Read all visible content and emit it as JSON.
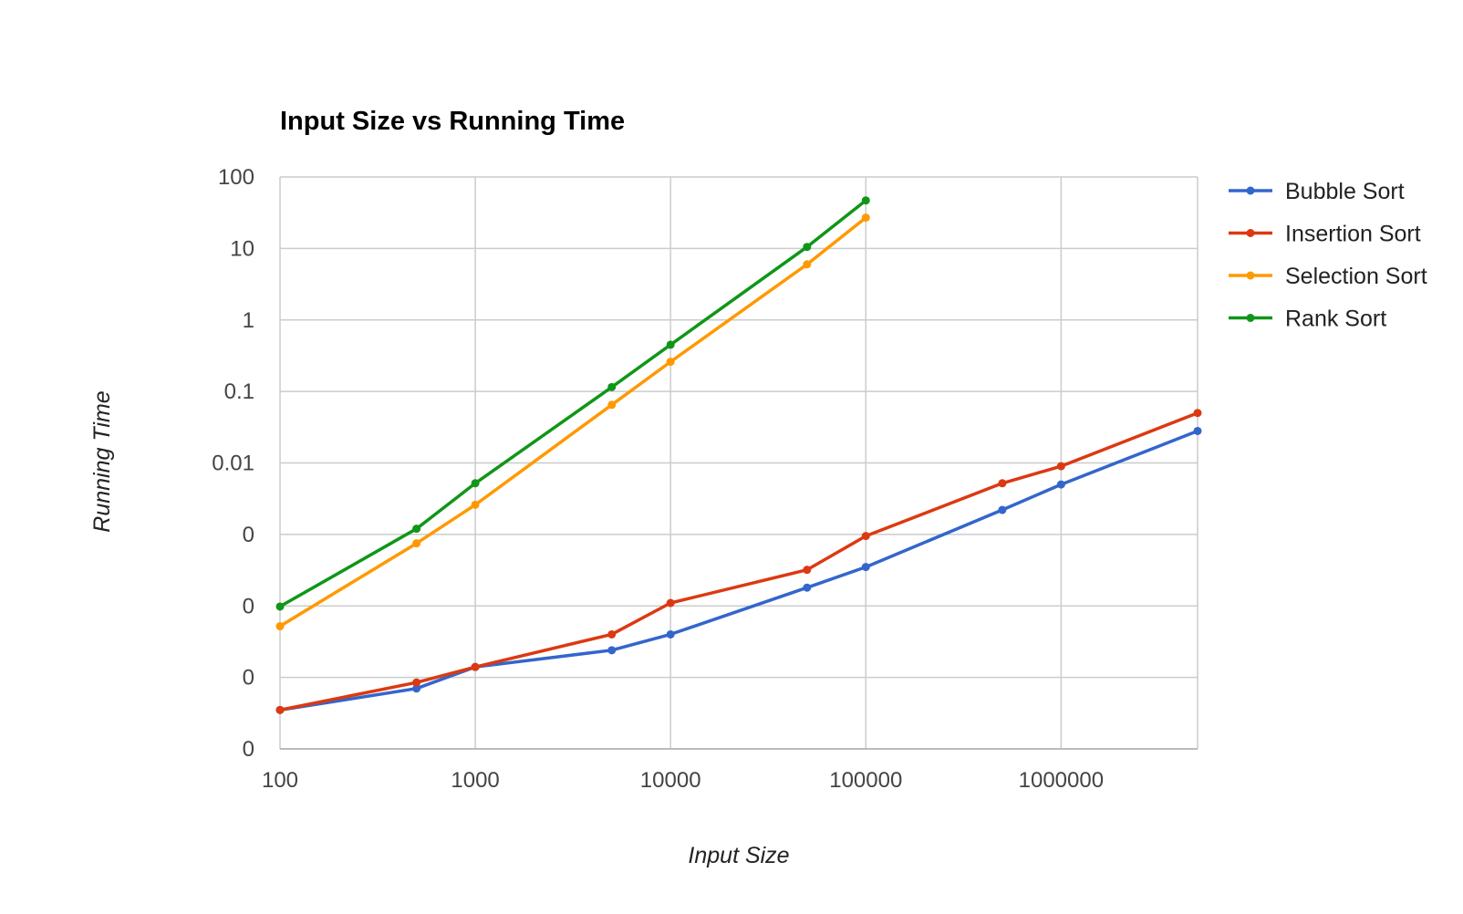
{
  "chart_data": {
    "type": "line",
    "title": "Input Size vs Running Time",
    "xlabel": "Input Size",
    "ylabel": "Running Time",
    "x_scale": "log",
    "y_scale": "log",
    "xlim": [
      100,
      5000000
    ],
    "ylim": [
      1e-06,
      100
    ],
    "x_ticks": [
      {
        "value": 100,
        "label": "100"
      },
      {
        "value": 1000,
        "label": "1000"
      },
      {
        "value": 10000,
        "label": "10000"
      },
      {
        "value": 100000,
        "label": "100000"
      },
      {
        "value": 1000000,
        "label": "1000000"
      }
    ],
    "y_ticks": [
      {
        "value": 100,
        "label": "100"
      },
      {
        "value": 10,
        "label": "10"
      },
      {
        "value": 1,
        "label": "1"
      },
      {
        "value": 0.1,
        "label": "0.1"
      },
      {
        "value": 0.01,
        "label": "0.01"
      },
      {
        "value": 0.001,
        "label": "0"
      },
      {
        "value": 0.0001,
        "label": "0"
      },
      {
        "value": 1e-05,
        "label": "0"
      },
      {
        "value": 1e-06,
        "label": "0"
      }
    ],
    "grid": true,
    "legend_position": "right",
    "series": [
      {
        "name": "Bubble Sort",
        "color": "#3366cc",
        "points": [
          [
            100,
            3.5e-06
          ],
          [
            500,
            7e-06
          ],
          [
            1000,
            1.4e-05
          ],
          [
            5000,
            2.4e-05
          ],
          [
            10000,
            4e-05
          ],
          [
            50000,
            0.00018
          ],
          [
            100000,
            0.00035
          ],
          [
            500000,
            0.0022
          ],
          [
            1000000,
            0.005
          ],
          [
            5000000,
            0.028
          ]
        ]
      },
      {
        "name": "Insertion Sort",
        "color": "#dc3912",
        "points": [
          [
            100,
            3.5e-06
          ],
          [
            500,
            8.5e-06
          ],
          [
            1000,
            1.4e-05
          ],
          [
            5000,
            4e-05
          ],
          [
            10000,
            0.00011
          ],
          [
            50000,
            0.00032
          ],
          [
            100000,
            0.00095
          ],
          [
            500000,
            0.0052
          ],
          [
            1000000,
            0.009
          ],
          [
            5000000,
            0.05
          ]
        ]
      },
      {
        "name": "Selection Sort",
        "color": "#ff9900",
        "points": [
          [
            100,
            5.2e-05
          ],
          [
            500,
            0.00075
          ],
          [
            1000,
            0.0026
          ],
          [
            5000,
            0.065
          ],
          [
            10000,
            0.26
          ],
          [
            50000,
            6
          ],
          [
            100000,
            27
          ]
        ]
      },
      {
        "name": "Rank Sort",
        "color": "#109618",
        "points": [
          [
            100,
            9.8e-05
          ],
          [
            500,
            0.0012
          ],
          [
            1000,
            0.0052
          ],
          [
            5000,
            0.115
          ],
          [
            10000,
            0.45
          ],
          [
            50000,
            10.5
          ],
          [
            100000,
            47
          ]
        ]
      }
    ]
  }
}
